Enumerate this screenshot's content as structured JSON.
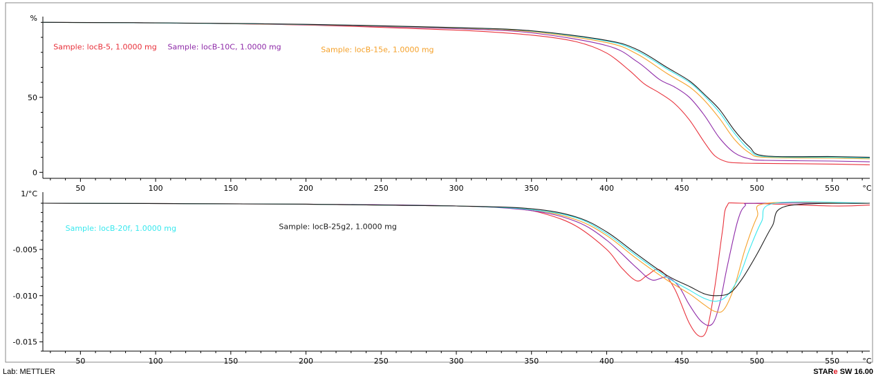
{
  "footer": {
    "lab": "Lab: METTLER",
    "software_prefix": "STAR",
    "software_mark": "e",
    "software_suffix": " SW 16.00"
  },
  "chart_data": [
    {
      "type": "line",
      "panel": "top",
      "ylabel": "%",
      "xunit": "°C",
      "xlim": [
        25,
        575
      ],
      "ylim": [
        -4,
        102
      ],
      "xticks": [
        50,
        100,
        150,
        200,
        250,
        300,
        350,
        400,
        450,
        500,
        550
      ],
      "yticks": [
        0,
        50
      ],
      "series": [
        {
          "name": "Sample: locB-5, 1.0000 mg",
          "color": "#e8303a",
          "x": [
            25,
            100,
            200,
            300,
            350,
            380,
            400,
            415,
            425,
            435,
            445,
            455,
            465,
            472,
            480,
            490,
            500,
            550,
            575
          ],
          "y": [
            100,
            99.6,
            98.2,
            94.8,
            91.5,
            87,
            79.5,
            68,
            59,
            53,
            46,
            35,
            20,
            11,
            7,
            6.2,
            6.0,
            5.5,
            5.0
          ]
        },
        {
          "name": "Sample: locB-10C, 1.0000 mg",
          "color": "#8e2aa8",
          "x": [
            25,
            100,
            200,
            300,
            350,
            400,
            420,
            435,
            445,
            455,
            465,
            475,
            485,
            495,
            505,
            550,
            575
          ],
          "y": [
            100,
            99.6,
            98.4,
            95.8,
            93,
            84.5,
            74,
            62,
            57,
            50,
            38,
            23,
            13,
            9,
            8,
            7.5,
            7.0
          ]
        },
        {
          "name": "Sample: locB-15e, 1.0000 mg",
          "color": "#f5a12a",
          "x": [
            25,
            100,
            200,
            300,
            350,
            400,
            420,
            440,
            455,
            465,
            475,
            485,
            495,
            505,
            550,
            575
          ],
          "y": [
            100,
            99.6,
            98.5,
            96.2,
            93.8,
            86.5,
            79,
            66,
            57,
            48,
            36,
            22,
            13,
            10,
            9.5,
            9.0
          ]
        },
        {
          "name": "Sample: locB-20f, 1.0000 mg",
          "color": "#38e8ee",
          "x": [
            25,
            100,
            200,
            300,
            350,
            400,
            420,
            440,
            455,
            465,
            475,
            485,
            495,
            505,
            550,
            575
          ],
          "y": [
            100,
            99.6,
            98.6,
            96.4,
            94.2,
            87.5,
            81,
            69,
            60,
            51,
            40,
            26,
            15,
            10.5,
            10,
            9.5
          ]
        },
        {
          "name": "Sample: locB-25g2, 1.0000 mg",
          "color": "#1c1c1c",
          "x": [
            25,
            100,
            200,
            300,
            350,
            400,
            420,
            440,
            455,
            465,
            475,
            485,
            495,
            505,
            550,
            575
          ],
          "y": [
            100,
            99.7,
            98.7,
            96.5,
            94.4,
            88,
            82,
            70,
            61,
            52,
            42,
            28,
            17,
            11,
            10.5,
            10
          ]
        }
      ],
      "annotations": [
        {
          "text": "Sample: locB-5, 1.0000 mg",
          "color": "#e8303a",
          "x": 32,
          "y": 82
        },
        {
          "text": "Sample: locB-10C, 1.0000 mg",
          "color": "#8e2aa8",
          "x": 108,
          "y": 82
        },
        {
          "text": "Sample: locB-15e, 1.0000 mg",
          "color": "#f5a12a",
          "x": 210,
          "y": 80
        }
      ]
    },
    {
      "type": "line",
      "panel": "bottom",
      "ylabel": "1/°C",
      "xunit": "°C",
      "xlim": [
        25,
        575
      ],
      "ylim": [
        -0.016,
        0.0009
      ],
      "xticks": [
        50,
        100,
        150,
        200,
        250,
        300,
        350,
        400,
        450,
        500,
        550
      ],
      "yticks": [
        -0.005,
        -0.01,
        -0.015
      ],
      "ytick_labels": [
        "-0.005",
        "-0.010",
        "-0.015"
      ],
      "series": [
        {
          "name": "Sample: locB-5, 1.0000 mg",
          "color": "#e8303a",
          "x": [
            25,
            200,
            300,
            340,
            360,
            380,
            400,
            410,
            420,
            427,
            435,
            445,
            455,
            462,
            467,
            472,
            477,
            480,
            490,
            550,
            575
          ],
          "y": [
            0,
            -0.0001,
            -0.0003,
            -0.0006,
            -0.0012,
            -0.0025,
            -0.005,
            -0.007,
            -0.0084,
            -0.0078,
            -0.0072,
            -0.0092,
            -0.013,
            -0.0144,
            -0.0135,
            -0.009,
            -0.003,
            -0.0003,
            0,
            -0.0003,
            -0.0002
          ]
        },
        {
          "name": "Sample: locB-10C, 1.0000 mg",
          "color": "#8e2aa8",
          "x": [
            25,
            200,
            300,
            350,
            380,
            400,
            420,
            430,
            440,
            448,
            455,
            463,
            470,
            475,
            480,
            487,
            492,
            500,
            575
          ],
          "y": [
            0,
            -0.0001,
            -0.0003,
            -0.0008,
            -0.002,
            -0.004,
            -0.007,
            -0.0083,
            -0.008,
            -0.009,
            -0.011,
            -0.0128,
            -0.0131,
            -0.011,
            -0.007,
            -0.002,
            -0.0003,
            0,
            0
          ]
        },
        {
          "name": "Sample: locB-15e, 1.0000 mg",
          "color": "#f5a12a",
          "x": [
            25,
            200,
            300,
            350,
            380,
            400,
            420,
            440,
            455,
            465,
            472,
            478,
            485,
            492,
            500,
            507,
            575
          ],
          "y": [
            0,
            -0.0001,
            -0.0003,
            -0.0007,
            -0.0018,
            -0.0035,
            -0.006,
            -0.0083,
            -0.0098,
            -0.011,
            -0.0117,
            -0.0115,
            -0.009,
            -0.005,
            -0.0015,
            0,
            0
          ]
        },
        {
          "name": "Sample: locB-20f, 1.0000 mg",
          "color": "#38e8ee",
          "x": [
            25,
            200,
            300,
            350,
            380,
            400,
            420,
            440,
            455,
            465,
            473,
            480,
            488,
            495,
            503,
            512,
            575
          ],
          "y": [
            0,
            -0.0001,
            -0.0003,
            -0.0007,
            -0.0016,
            -0.0033,
            -0.0057,
            -0.008,
            -0.0094,
            -0.0103,
            -0.0106,
            -0.01,
            -0.008,
            -0.005,
            -0.002,
            0,
            0
          ]
        },
        {
          "name": "Sample: locB-25g2, 1.0000 mg",
          "color": "#1c1c1c",
          "x": [
            25,
            200,
            300,
            350,
            380,
            400,
            420,
            440,
            455,
            465,
            473,
            482,
            490,
            500,
            510,
            520,
            575
          ],
          "y": [
            0,
            -0.0001,
            -0.0003,
            -0.0006,
            -0.0015,
            -0.0031,
            -0.0055,
            -0.0078,
            -0.009,
            -0.0098,
            -0.01,
            -0.0097,
            -0.0082,
            -0.0055,
            -0.0025,
            -0.0003,
            0
          ]
        }
      ],
      "annotations": [
        {
          "text": "Sample: locB-20f, 1.0000 mg",
          "color": "#38e8ee",
          "x": 40,
          "y": -0.003
        },
        {
          "text": "Sample: locB-25g2, 1.0000 mg",
          "color": "#1c1c1c",
          "x": 182,
          "y": -0.0028
        }
      ]
    }
  ]
}
